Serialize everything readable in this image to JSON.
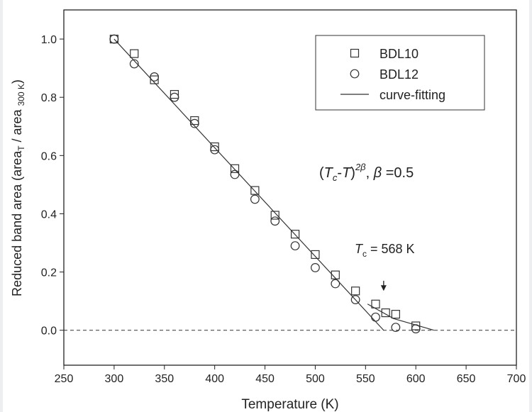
{
  "chart_data": {
    "type": "scatter",
    "x_label": "Temperature  (K)",
    "y_label_parts": [
      "Reduced band area (area",
      "T",
      " / area ",
      "300 K",
      ")"
    ],
    "xlim": [
      250,
      700
    ],
    "xticks": [
      250,
      300,
      350,
      400,
      450,
      500,
      550,
      600,
      650,
      700
    ],
    "ylim": [
      -0.12,
      1.1
    ],
    "yticks": [
      {
        "value": 0,
        "label": "0.0"
      },
      0.2,
      0.4,
      0.6,
      0.8,
      {
        "value": 1,
        "label": "1.0"
      }
    ],
    "reference_line": {
      "y": 0,
      "style": "dashed"
    },
    "series": [
      {
        "name": "BDL10",
        "marker": "square",
        "color": "#333333",
        "x": [
          300,
          320,
          340,
          360,
          380,
          400,
          420,
          440,
          460,
          480,
          500,
          520,
          540,
          560,
          570,
          580,
          600
        ],
        "values": [
          1.0,
          0.95,
          0.86,
          0.81,
          0.72,
          0.63,
          0.555,
          0.48,
          0.395,
          0.33,
          0.26,
          0.19,
          0.135,
          0.09,
          0.06,
          0.055,
          0.015
        ]
      },
      {
        "name": "BDL12",
        "marker": "circle",
        "color": "#333333",
        "x": [
          300,
          320,
          340,
          360,
          380,
          400,
          420,
          440,
          460,
          480,
          500,
          520,
          540,
          560,
          580,
          600
        ],
        "values": [
          1.0,
          0.915,
          0.87,
          0.8,
          0.71,
          0.62,
          0.535,
          0.45,
          0.375,
          0.29,
          0.215,
          0.16,
          0.105,
          0.045,
          0.01,
          0.005
        ]
      },
      {
        "name": "curve-fitting",
        "marker": "line",
        "color": "#333333",
        "x": [
          300,
          568,
          null,
          552,
          578,
          618
        ],
        "values": [
          1.0,
          0,
          null,
          0.09,
          0.04,
          0.0
        ]
      }
    ],
    "annotations": [
      {
        "parts": [
          "(",
          "T",
          "c",
          "-",
          "T",
          ")",
          "2β",
          ", ",
          "β",
          " =0.5"
        ]
      },
      {
        "parts": [
          "T",
          "c",
          " = 568 K"
        ],
        "arrow": {
          "x": 568,
          "y_from": 0.17,
          "y_to": 0.135
        }
      }
    ]
  }
}
